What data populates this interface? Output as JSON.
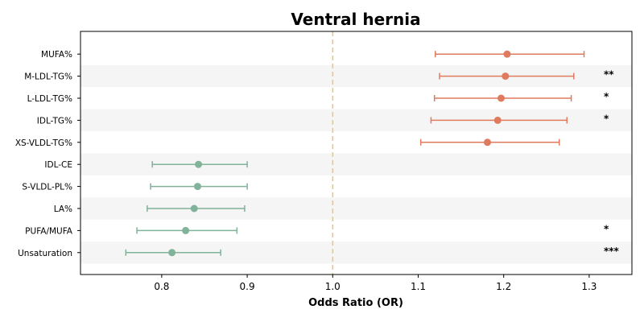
{
  "chart_data": {
    "type": "scatter",
    "title": "Ventral hernia",
    "xlabel": "Odds Ratio (OR)",
    "ylabel": "",
    "xlim": [
      0.705,
      1.35
    ],
    "xticks": [
      0.8,
      0.9,
      1.0,
      1.1,
      1.2,
      1.3
    ],
    "xtick_labels": [
      "0.8",
      "0.9",
      "1.0",
      "1.1",
      "1.2",
      "1.3"
    ],
    "reference_line": 1.0,
    "grid": false,
    "alternating_row_shading": true,
    "colors": {
      "positive": "#e07a5f",
      "negative": "#81b29a",
      "reference": "#f2c27a",
      "band": "#f5f5f5"
    },
    "series": [
      {
        "label": "MUFA%",
        "or": 1.204,
        "ci_low": 1.12,
        "ci_high": 1.294,
        "sig": ""
      },
      {
        "label": "M-LDL-TG%",
        "or": 1.202,
        "ci_low": 1.125,
        "ci_high": 1.282,
        "sig": "**"
      },
      {
        "label": "L-LDL-TG%",
        "or": 1.197,
        "ci_low": 1.119,
        "ci_high": 1.279,
        "sig": "*"
      },
      {
        "label": "IDL-TG%",
        "or": 1.193,
        "ci_low": 1.115,
        "ci_high": 1.274,
        "sig": "*"
      },
      {
        "label": "XS-VLDL-TG%",
        "or": 1.181,
        "ci_low": 1.103,
        "ci_high": 1.265,
        "sig": ""
      },
      {
        "label": "IDL-CE",
        "or": 0.843,
        "ci_low": 0.789,
        "ci_high": 0.9,
        "sig": ""
      },
      {
        "label": "S-VLDL-PL%",
        "or": 0.842,
        "ci_low": 0.787,
        "ci_high": 0.9,
        "sig": ""
      },
      {
        "label": "LA%",
        "or": 0.838,
        "ci_low": 0.783,
        "ci_high": 0.897,
        "sig": ""
      },
      {
        "label": "PUFA/MUFA",
        "or": 0.828,
        "ci_low": 0.771,
        "ci_high": 0.888,
        "sig": "*"
      },
      {
        "label": "Unsaturation",
        "or": 0.812,
        "ci_low": 0.758,
        "ci_high": 0.869,
        "sig": "***"
      }
    ]
  }
}
